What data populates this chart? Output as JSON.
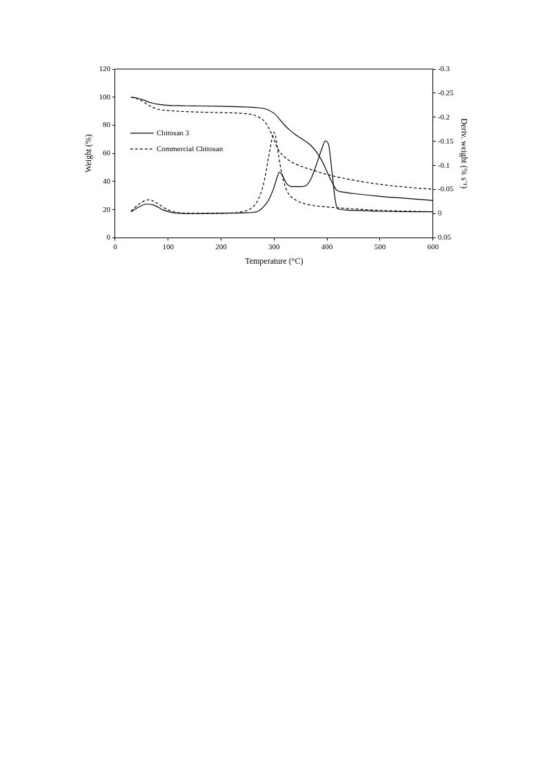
{
  "chart_data": {
    "type": "line",
    "xlabel": "Temperature (°C)",
    "ylabel": "Weight (%)",
    "y2label": "Deriv. weight (% s⁻¹)",
    "xlim": [
      0,
      600
    ],
    "xticks": [
      0,
      100,
      200,
      300,
      400,
      500,
      600
    ],
    "ylim": [
      0,
      120
    ],
    "yticks": [
      0,
      20,
      40,
      60,
      80,
      100,
      120
    ],
    "y2lim": [
      0.05,
      -0.3
    ],
    "y2ticks": [
      -0.3,
      -0.25,
      -0.2,
      -0.15,
      -0.1,
      -0.05,
      0,
      0.05
    ],
    "grid": false,
    "legend": "left",
    "marker": "none",
    "series": [
      {
        "name": "Chitosan 3",
        "color": "#000000",
        "line_style": "solid",
        "x": [
          30,
          40,
          50,
          60,
          70,
          80,
          100,
          150,
          200,
          250,
          270,
          285,
          300,
          310,
          320,
          330,
          340,
          350,
          360,
          370,
          380,
          390,
          400,
          410,
          418,
          430,
          450,
          500,
          550,
          600
        ],
        "values": [
          100,
          99.5,
          98.5,
          97,
          95.8,
          95,
          94.2,
          93.8,
          93.5,
          93,
          92.5,
          91.5,
          88.5,
          84.5,
          80,
          76.5,
          73.5,
          71,
          68.5,
          65.5,
          61,
          55,
          47,
          39,
          34,
          32.5,
          31.5,
          29.5,
          28,
          26.5
        ]
      },
      {
        "name": "Commercial Chitosan",
        "color": "#000000",
        "line_style": "dashed",
        "x": [
          30,
          40,
          50,
          60,
          70,
          80,
          100,
          150,
          200,
          240,
          260,
          270,
          280,
          290,
          300,
          305,
          310,
          320,
          330,
          350,
          370,
          400,
          450,
          500,
          550,
          600
        ],
        "values": [
          100,
          99,
          97.5,
          95,
          93,
          91.5,
          90.5,
          89.5,
          89,
          88.5,
          87.5,
          86,
          83.5,
          78,
          70,
          65,
          61.5,
          57.5,
          54.5,
          51,
          48.5,
          45,
          41,
          38,
          36,
          34.5
        ]
      },
      {
        "color": "#000000",
        "line_style": "solid",
        "axis": "y2",
        "x": [
          30,
          45,
          60,
          75,
          90,
          110,
          150,
          200,
          250,
          270,
          280,
          290,
          300,
          305,
          310,
          315,
          320,
          325,
          335,
          350,
          360,
          370,
          380,
          390,
          397,
          403,
          410,
          415,
          420,
          450,
          500,
          600
        ],
        "values": [
          -0.004,
          -0.014,
          -0.02,
          -0.017,
          -0.008,
          -0.002,
          0,
          -0.001,
          -0.002,
          -0.005,
          -0.014,
          -0.029,
          -0.055,
          -0.073,
          -0.086,
          -0.081,
          -0.07,
          -0.061,
          -0.056,
          -0.056,
          -0.058,
          -0.073,
          -0.102,
          -0.134,
          -0.151,
          -0.143,
          -0.081,
          -0.032,
          -0.01,
          -0.007,
          -0.005,
          -0.004
        ]
      },
      {
        "color": "#000000",
        "line_style": "dashed",
        "axis": "y2",
        "x": [
          30,
          45,
          65,
          80,
          100,
          130,
          200,
          240,
          260,
          270,
          280,
          290,
          297,
          300,
          303,
          308,
          315,
          325,
          340,
          360,
          400,
          450,
          500,
          600
        ],
        "values": [
          -0.005,
          -0.02,
          -0.029,
          -0.021,
          -0.008,
          -0.001,
          -0.001,
          -0.004,
          -0.014,
          -0.029,
          -0.061,
          -0.119,
          -0.16,
          -0.169,
          -0.16,
          -0.125,
          -0.081,
          -0.046,
          -0.029,
          -0.02,
          -0.014,
          -0.01,
          -0.007,
          -0.004
        ]
      }
    ]
  }
}
